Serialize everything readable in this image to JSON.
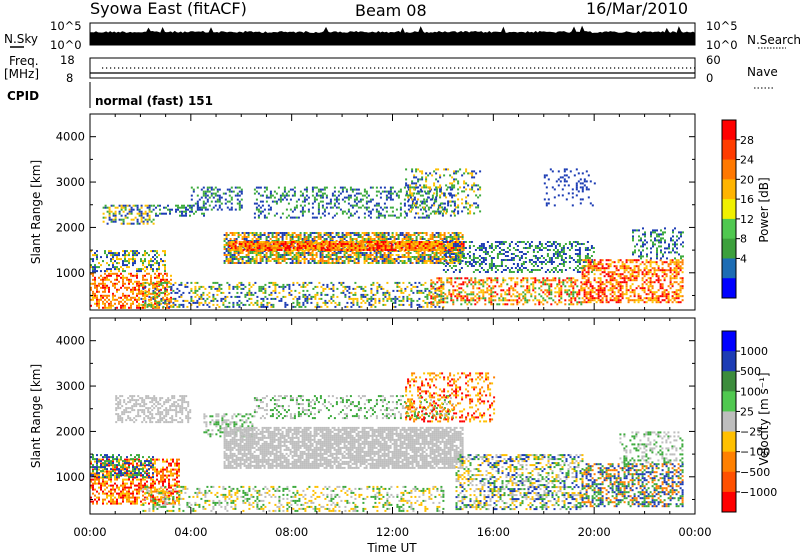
{
  "header": {
    "station": "Syowa East (fitACF)",
    "beam": "Beam 08",
    "date": "16/Mar/2010"
  },
  "strip_panels": {
    "nsky_label": "N.Sky",
    "nsearch_label": "N.Search",
    "nsky_ticks": [
      "10^5",
      "10^0"
    ],
    "nsearch_ticks": [
      "10^5",
      "10^0"
    ],
    "freq_label_1": "Freq.",
    "freq_label_2": "[MHz]",
    "freq_ticks": [
      "18",
      "8"
    ],
    "nave_label": "Nave",
    "nave_ticks": [
      "60",
      "0"
    ],
    "cpid_label": "CPID",
    "cpid_value": "normal (fast) 151"
  },
  "colors": {
    "red": "#ff0000",
    "orange": "#ff8000",
    "yellow": "#ffc000",
    "green": "#3caa3c",
    "blue": "#1c3cb4",
    "gray": "#bebebe",
    "bright_blue": "#0000ff"
  },
  "chart_data": [
    {
      "type": "heatmap",
      "name": "Power",
      "ylabel": "Slant Range [km]",
      "xlabel": "",
      "x_ticks": [
        "00:00",
        "04:00",
        "08:00",
        "12:00",
        "16:00",
        "20:00",
        "00:00"
      ],
      "xlim_hours": [
        0,
        24
      ],
      "y_ticks": [
        1000,
        2000,
        3000,
        4000
      ],
      "ylim_km": [
        180,
        4500
      ],
      "colorbar": {
        "label": "Power [dB]",
        "ticks": [
          "28",
          "24",
          "20",
          "16",
          "12",
          "8",
          "4"
        ],
        "colors": [
          "#ff0000",
          "#ff3c00",
          "#ff7800",
          "#ffb400",
          "#f0f000",
          "#50c850",
          "#3ca03c",
          "#1c6cb4",
          "#0000ff"
        ]
      }
    },
    {
      "type": "heatmap",
      "name": "Velocity",
      "ylabel": "Slant Range [km]",
      "xlabel": "Time UT",
      "x_ticks": [
        "00:00",
        "04:00",
        "08:00",
        "12:00",
        "16:00",
        "20:00",
        "00:00"
      ],
      "xlim_hours": [
        0,
        24
      ],
      "y_ticks": [
        1000,
        2000,
        3000,
        4000
      ],
      "ylim_km": [
        180,
        4500
      ],
      "colorbar": {
        "label": "Velocity [m s⁻¹]",
        "ticks": [
          "1000",
          "500",
          "100",
          "25",
          "−25",
          "−100",
          "−500",
          "−1000"
        ],
        "colors": [
          "#0000ff",
          "#1c3cb4",
          "#3c8c3c",
          "#50c850",
          "#bebebe",
          "#ffc000",
          "#ff8000",
          "#ff5000",
          "#ff0000"
        ]
      }
    }
  ]
}
